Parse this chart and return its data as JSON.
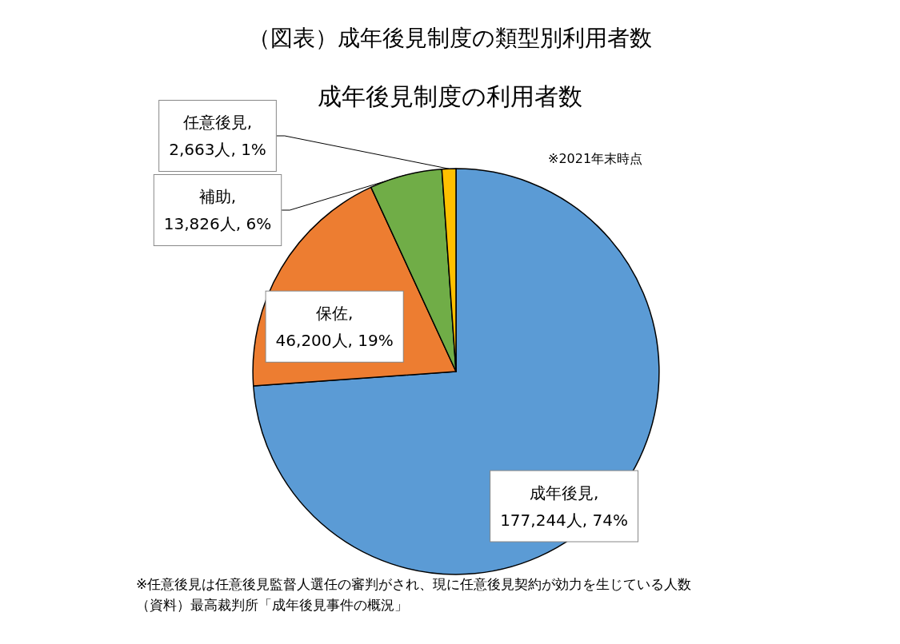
{
  "chart_data": {
    "type": "pie",
    "title": "（図表）成年後見制度の類型別利用者数",
    "subtitle": "成年後見制度の利用者数",
    "categories": [
      "成年後見",
      "保佐",
      "補助",
      "任意後見"
    ],
    "values": [
      177244,
      46200,
      13826,
      2663
    ],
    "value_labels": [
      ",\n177,244人, 74%",
      ",\n46,200人, 19%",
      ",\n13,826人, 6%",
      ",\n2,663人, 1%"
    ],
    "colors": [
      "#5b9bd5",
      "#ed7d31",
      "#70ad47",
      "#ffc000"
    ],
    "annotations": [
      "※2021年末時点",
      "※任意後見は任意後見監督人選任の審判がされ、現に任意後見契約が効力を生じている人数",
      "（資料）最高裁判所「成年後見事件の概況」"
    ]
  }
}
